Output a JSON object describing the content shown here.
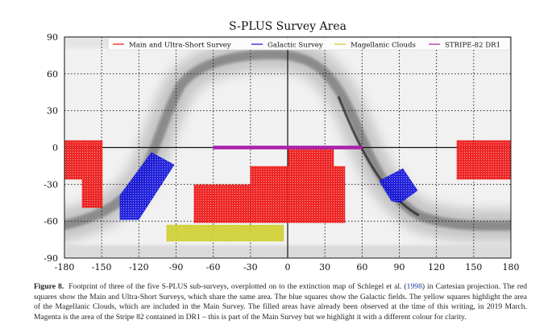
{
  "chart_data": {
    "type": "map",
    "title": "S-PLUS Survey Area",
    "xlim": [
      -180,
      180
    ],
    "ylim": [
      -90,
      90
    ],
    "xticks": [
      -180,
      -150,
      -120,
      -90,
      -60,
      -30,
      0,
      30,
      60,
      90,
      120,
      150,
      180
    ],
    "yticks": [
      90,
      60,
      30,
      0,
      -30,
      -60,
      -90
    ],
    "grid": true,
    "legend_position": "top",
    "background": "grayscale extinction map",
    "series": [
      {
        "name": "Main and Ultra-Short Survey",
        "color": "#ee1111",
        "regions": [
          [
            [
              -180,
              5.6
            ],
            [
              -149.5,
              5.6
            ],
            [
              -149.5,
              -48.8
            ],
            [
              -165.7,
              -48.8
            ],
            [
              -165.7,
              -25.8
            ],
            [
              -180,
              -25.8
            ]
          ],
          [
            [
              136.5,
              5.6
            ],
            [
              180,
              5.6
            ],
            [
              180,
              -25.8
            ],
            [
              136.5,
              -25.8
            ]
          ],
          [
            [
              0.6,
              0.3
            ],
            [
              37,
              0.3
            ],
            [
              37,
              -15.4
            ],
            [
              46.1,
              -15.4
            ],
            [
              46.1,
              -61.2
            ],
            [
              -75.4,
              -61.2
            ],
            [
              -75.4,
              -30.4
            ],
            [
              -30,
              -30.4
            ],
            [
              -30,
              -15.4
            ],
            [
              0.6,
              -15.4
            ]
          ]
        ]
      },
      {
        "name": "Galactic Survey",
        "color": "#1111dd",
        "regions": [
          [
            [
              -109.8,
              -4.2
            ],
            [
              -91.6,
              -14.1
            ],
            [
              -120.2,
              -58.6
            ],
            [
              -135.2,
              -58.6
            ],
            [
              -135.2,
              -38.9
            ]
          ],
          [
            [
              74.1,
              -27.2
            ],
            [
              92.9,
              -17.3
            ],
            [
              104.6,
              -35
            ],
            [
              91,
              -44.8
            ],
            [
              83.8,
              -43.5
            ]
          ]
        ]
      },
      {
        "name": "Magellanic Clouds",
        "color": "#cccc22",
        "regions": [
          [
            [
              -97.5,
              -63.2
            ],
            [
              -3.3,
              -63.2
            ],
            [
              -3.3,
              -76.2
            ],
            [
              -97.5,
              -76.2
            ]
          ]
        ]
      },
      {
        "name": "STRIPE-82 DR1",
        "color": "#aa22aa",
        "regions": [
          [
            [
              -60,
              1.3
            ],
            [
              60,
              1.3
            ],
            [
              60,
              -1.3
            ],
            [
              -60,
              -1.3
            ]
          ]
        ]
      }
    ]
  },
  "caption": {
    "label": "Figure 8.",
    "text_before_cite": "Footprint of three of the five S-PLUS sub-surveys, overplotted on to the extinction map of Schlegel et al. (",
    "cite_year": "1998",
    "text_after_cite": ") in Cartesian projection. The red squares show the Main and Ultra-Short Surveys, which share the same area. The blue squares show the Galactic fields. The yellow squares highlight the area of the Magellanic Clouds, which are included in the Main Survey. The filled areas have already been observed at the time of this writing, in 2019 March. Magenta is the area of the Stripe 82 contained in DR1 – this is part of the Main Survey but we highlight it with a different colour for clarity."
  }
}
